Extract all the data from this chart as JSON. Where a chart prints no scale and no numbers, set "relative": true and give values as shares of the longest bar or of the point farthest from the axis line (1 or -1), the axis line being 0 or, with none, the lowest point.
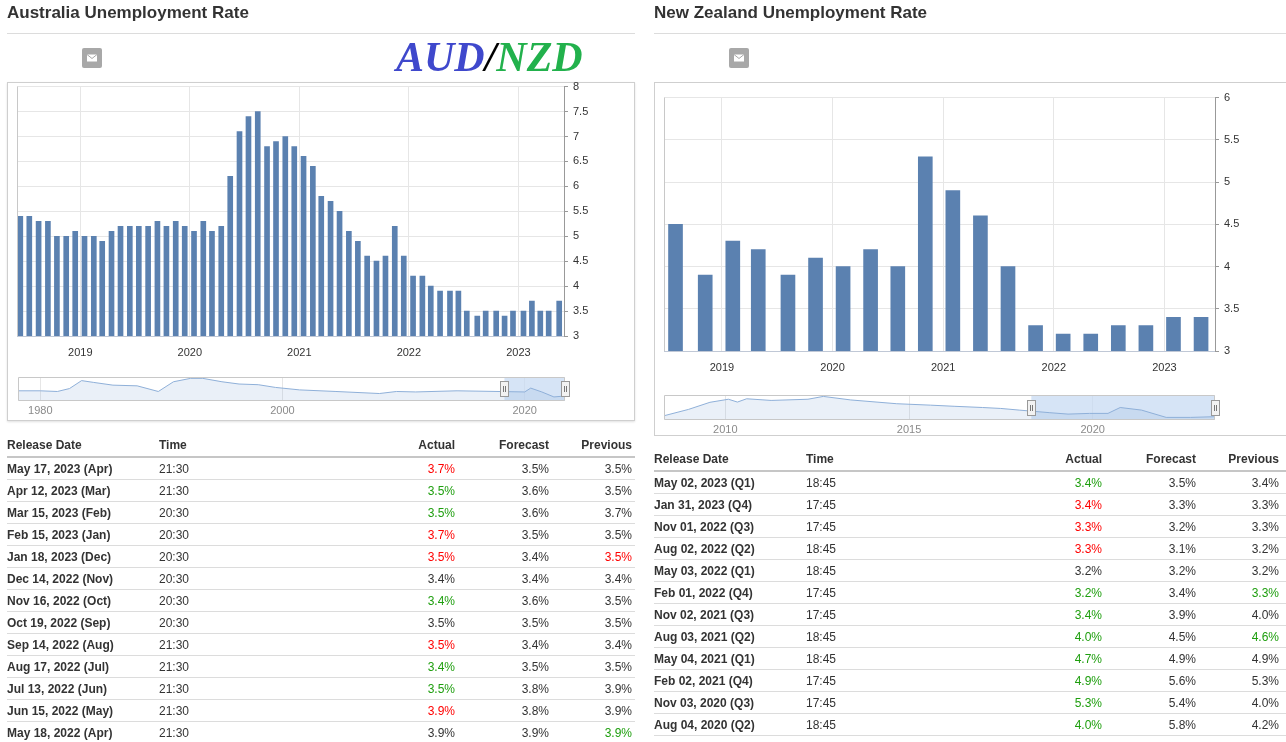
{
  "chart_data": [
    {
      "type": "bar",
      "title": "Australia Unemployment Rate",
      "x": [
        "2018-06-15",
        "2018-07-15",
        "2018-08-15",
        "2018-09-15",
        "2018-10-15",
        "2018-11-15",
        "2018-12-15",
        "2019-01-15",
        "2019-02-15",
        "2019-03-15",
        "2019-04-15",
        "2019-05-15",
        "2019-06-15",
        "2019-07-15",
        "2019-08-15",
        "2019-09-15",
        "2019-10-15",
        "2019-11-15",
        "2019-12-15",
        "2020-01-15",
        "2020-02-15",
        "2020-03-15",
        "2020-04-15",
        "2020-05-15",
        "2020-06-15",
        "2020-07-15",
        "2020-08-15",
        "2020-09-15",
        "2020-10-15",
        "2020-11-15",
        "2020-12-15",
        "2021-01-15",
        "2021-02-15",
        "2021-03-15",
        "2021-04-15",
        "2021-05-15",
        "2021-06-15",
        "2021-07-15",
        "2021-08-15",
        "2021-09-15",
        "2021-10-15",
        "2021-11-15",
        "2021-12-15",
        "2022-01-15",
        "2022-02-15",
        "2022-03-15",
        "2022-04-15",
        "2022-05-18",
        "2022-06-15",
        "2022-07-13",
        "2022-08-17",
        "2022-09-14",
        "2022-10-19",
        "2022-11-16",
        "2022-12-14",
        "2023-01-18",
        "2023-02-15",
        "2023-03-15",
        "2023-04-12",
        "2023-05-17"
      ],
      "values": [
        5.4,
        5.4,
        5.3,
        5.3,
        5.0,
        5.0,
        5.1,
        5.0,
        5.0,
        4.9,
        5.1,
        5.2,
        5.2,
        5.2,
        5.2,
        5.3,
        5.2,
        5.3,
        5.2,
        5.1,
        5.3,
        5.1,
        5.2,
        6.2,
        7.1,
        7.4,
        7.5,
        6.8,
        6.9,
        7.0,
        6.8,
        6.6,
        6.4,
        5.8,
        5.7,
        5.5,
        5.1,
        4.9,
        4.6,
        4.5,
        4.6,
        5.2,
        4.6,
        4.2,
        4.2,
        4.0,
        3.9,
        3.9,
        3.9,
        3.5,
        3.4,
        3.5,
        3.5,
        3.4,
        3.5,
        3.5,
        3.7,
        3.5,
        3.5,
        3.7
      ],
      "color": "#5b81b0",
      "xlim": [
        "2018-06-04",
        "2023-06-02"
      ],
      "xticks": [
        "2019",
        "2020",
        "2021",
        "2022",
        "2023"
      ],
      "ylim": [
        3,
        8
      ],
      "yticks": [
        3,
        3.5,
        4,
        4.5,
        5,
        5.5,
        6,
        6.5,
        7,
        7.5,
        8
      ],
      "grid": true
    },
    {
      "type": "area",
      "relative": true,
      "x": [
        "1978-03",
        "1980-01",
        "1981-06",
        "1982-06",
        "1983-06",
        "1984-06",
        "1986-01",
        "1988-01",
        "1989-10",
        "1991-01",
        "1992-06",
        "1993-06",
        "1995-01",
        "1996-06",
        "1998-01",
        "1999-06",
        "2001-06",
        "2004-06",
        "2008-01",
        "2009-06",
        "2011-01",
        "2014-06",
        "2020-01",
        "2020-07",
        "2021-06",
        "2022-06",
        "2023-05"
      ],
      "values": [
        0.45,
        0.45,
        0.42,
        0.55,
        0.9,
        0.82,
        0.7,
        0.67,
        0.42,
        0.85,
        1.0,
        1.0,
        0.85,
        0.75,
        0.72,
        0.6,
        0.49,
        0.42,
        0.33,
        0.42,
        0.4,
        0.45,
        0.4,
        0.57,
        0.4,
        0.18,
        0.22
      ],
      "color": "#8fb0d9",
      "xlim": [
        "1978-03",
        "2023-05"
      ],
      "xticks": [
        "1980",
        "2000",
        "2020"
      ],
      "grid": "x",
      "bands": [
        {
          "axis": "x",
          "from": "2018-05",
          "to": "2023-05",
          "color": "#c5d9f2"
        }
      ]
    },
    {
      "type": "other",
      "xlabel": "Release Date",
      "categories": [
        "May 17, 2023 (Apr)",
        "Apr 12, 2023 (Mar)",
        "Mar 15, 2023 (Feb)",
        "Feb 15, 2023 (Jan)",
        "Jan 18, 2023 (Dec)",
        "Dec 14, 2022 (Nov)",
        "Nov 16, 2022 (Oct)",
        "Oct 19, 2022 (Sep)",
        "Sep 14, 2022 (Aug)",
        "Aug 17, 2022 (Jul)",
        "Jul 13, 2022 (Jun)",
        "Jun 15, 2022 (May)",
        "May 18, 2022 (Apr)"
      ],
      "series": [
        {
          "name": "Time",
          "color": "#333333",
          "values": [
            21.5,
            21.5,
            20.5,
            20.5,
            20.5,
            20.5,
            20.5,
            20.5,
            21.5,
            21.5,
            21.5,
            21.5,
            21.5
          ],
          "value_labels": [
            "21:30",
            "21:30",
            "20:30",
            "20:30",
            "20:30",
            "20:30",
            "20:30",
            "20:30",
            "21:30",
            "21:30",
            "21:30",
            "21:30",
            "21:30"
          ]
        },
        {
          "name": "Actual",
          "values": [
            3.7,
            3.5,
            3.5,
            3.7,
            3.5,
            3.4,
            3.4,
            3.5,
            3.5,
            3.4,
            3.5,
            3.9,
            3.9
          ],
          "value_labels": [
            "3.7%",
            "3.5%",
            "3.5%",
            "3.7%",
            "3.5%",
            "3.4%",
            "3.4%",
            "3.5%",
            "3.5%",
            "3.4%",
            "3.5%",
            "3.9%",
            "3.9%"
          ],
          "colors": [
            "#ff0000",
            "#1e9e0e",
            "#1e9e0e",
            "#ff0000",
            "#ff0000",
            "#333333",
            "#1e9e0e",
            "#333333",
            "#ff0000",
            "#1e9e0e",
            "#1e9e0e",
            "#ff0000",
            "#333333"
          ]
        },
        {
          "name": "Forecast",
          "color": "#333333",
          "values": [
            3.5,
            3.6,
            3.6,
            3.5,
            3.4,
            3.4,
            3.6,
            3.5,
            3.4,
            3.5,
            3.8,
            3.8,
            3.9
          ],
          "value_labels": [
            "3.5%",
            "3.6%",
            "3.6%",
            "3.5%",
            "3.4%",
            "3.4%",
            "3.6%",
            "3.5%",
            "3.4%",
            "3.5%",
            "3.8%",
            "3.8%",
            "3.9%"
          ]
        },
        {
          "name": "Previous",
          "values": [
            3.5,
            3.5,
            3.7,
            3.5,
            3.5,
            3.4,
            3.5,
            3.5,
            3.4,
            3.5,
            3.9,
            3.9,
            3.9
          ],
          "value_labels": [
            "3.5%",
            "3.5%",
            "3.7%",
            "3.5%",
            "3.5%",
            "3.4%",
            "3.5%",
            "3.5%",
            "3.4%",
            "3.5%",
            "3.9%",
            "3.9%",
            "3.9%"
          ],
          "colors": [
            "#333333",
            "#333333",
            "#333333",
            "#333333",
            "#ff0000",
            "#333333",
            "#333333",
            "#333333",
            "#333333",
            "#333333",
            "#333333",
            "#333333",
            "#1e9e0e"
          ]
        }
      ]
    },
    {
      "type": "bar",
      "title": "New Zealand Unemployment Rate",
      "x": [
        "2018-08-01",
        "2018-11-07",
        "2019-02-06",
        "2019-05-01",
        "2019-08-07",
        "2019-11-06",
        "2020-02-05",
        "2020-05-06",
        "2020-08-04",
        "2020-11-03",
        "2021-02-02",
        "2021-05-04",
        "2021-08-03",
        "2021-11-02",
        "2022-02-01",
        "2022-05-03",
        "2022-08-02",
        "2022-11-01",
        "2023-01-31",
        "2023-05-02"
      ],
      "values": [
        4.5,
        3.9,
        4.3,
        4.2,
        3.9,
        4.1,
        4.0,
        4.2,
        4.0,
        5.3,
        4.9,
        4.6,
        4.0,
        3.3,
        3.2,
        3.2,
        3.3,
        3.3,
        3.4,
        3.4
      ],
      "color": "#5b81b0",
      "xlim": [
        "2018-06-24",
        "2023-06-17"
      ],
      "xticks": [
        "2019",
        "2020",
        "2021",
        "2022",
        "2023"
      ],
      "ylim": [
        3,
        6
      ],
      "yticks": [
        3,
        3.5,
        4,
        4.5,
        5,
        5.5,
        6
      ],
      "grid": true
    },
    {
      "type": "area",
      "relative": true,
      "x": [
        "2008-05",
        "2009-01",
        "2009-08",
        "2010-02",
        "2010-05",
        "2010-08",
        "2011-04",
        "2012-04",
        "2012-09",
        "2013-06",
        "2014-09",
        "2015-08",
        "2016-04",
        "2017-01",
        "2017-07",
        "2018-01",
        "2018-11",
        "2019-05",
        "2019-12",
        "2020-06",
        "2020-10",
        "2021-05",
        "2022-01",
        "2022-09",
        "2023-05"
      ],
      "values": [
        0.18,
        0.45,
        0.75,
        0.88,
        0.76,
        0.9,
        0.83,
        0.88,
        1.0,
        0.85,
        0.69,
        0.63,
        0.58,
        0.53,
        0.49,
        0.42,
        0.31,
        0.25,
        0.28,
        0.28,
        0.53,
        0.42,
        0.11,
        0.11,
        0.14
      ],
      "color": "#8fb0d9",
      "xlim": [
        "2008-05",
        "2023-05"
      ],
      "xticks": [
        "2010",
        "2015",
        "2020"
      ],
      "grid": "x",
      "bands": [
        {
          "axis": "x",
          "from": "2018-05",
          "to": "2023-05",
          "color": "#c5d9f2"
        }
      ]
    },
    {
      "type": "other",
      "xlabel": "Release Date",
      "categories": [
        "May 02, 2023 (Q1)",
        "Jan 31, 2023 (Q4)",
        "Nov 01, 2022 (Q3)",
        "Aug 02, 2022 (Q2)",
        "May 03, 2022 (Q1)",
        "Feb 01, 2022 (Q4)",
        "Nov 02, 2021 (Q3)",
        "Aug 03, 2021 (Q2)",
        "May 04, 2021 (Q1)",
        "Feb 02, 2021 (Q4)",
        "Nov 03, 2020 (Q3)",
        "Aug 04, 2020 (Q2)"
      ],
      "series": [
        {
          "name": "Time",
          "color": "#333333",
          "values": [
            18.75,
            17.75,
            17.75,
            18.75,
            18.75,
            17.75,
            17.75,
            18.75,
            18.75,
            17.75,
            17.75,
            18.75
          ],
          "value_labels": [
            "18:45",
            "17:45",
            "17:45",
            "18:45",
            "18:45",
            "17:45",
            "17:45",
            "18:45",
            "18:45",
            "17:45",
            "17:45",
            "18:45"
          ]
        },
        {
          "name": "Actual",
          "values": [
            3.4,
            3.4,
            3.3,
            3.3,
            3.2,
            3.2,
            3.4,
            4.0,
            4.7,
            4.9,
            5.3,
            4.0
          ],
          "value_labels": [
            "3.4%",
            "3.4%",
            "3.3%",
            "3.3%",
            "3.2%",
            "3.2%",
            "3.4%",
            "4.0%",
            "4.7%",
            "4.9%",
            "5.3%",
            "4.0%"
          ],
          "colors": [
            "#1e9e0e",
            "#ff0000",
            "#ff0000",
            "#ff0000",
            "#333333",
            "#1e9e0e",
            "#1e9e0e",
            "#1e9e0e",
            "#1e9e0e",
            "#1e9e0e",
            "#1e9e0e",
            "#1e9e0e"
          ]
        },
        {
          "name": "Forecast",
          "color": "#333333",
          "values": [
            3.5,
            3.3,
            3.2,
            3.1,
            3.2,
            3.4,
            3.9,
            4.5,
            4.9,
            5.6,
            5.4,
            5.8
          ],
          "value_labels": [
            "3.5%",
            "3.3%",
            "3.2%",
            "3.1%",
            "3.2%",
            "3.4%",
            "3.9%",
            "4.5%",
            "4.9%",
            "5.6%",
            "5.4%",
            "5.8%"
          ]
        },
        {
          "name": "Previous",
          "values": [
            3.4,
            3.3,
            3.3,
            3.2,
            3.2,
            3.3,
            4.0,
            4.6,
            4.9,
            5.3,
            4.0,
            4.2
          ],
          "value_labels": [
            "3.4%",
            "3.3%",
            "3.3%",
            "3.2%",
            "3.2%",
            "3.3%",
            "4.0%",
            "4.6%",
            "4.9%",
            "5.3%",
            "4.0%",
            "4.2%"
          ],
          "colors": [
            "#333333",
            "#333333",
            "#333333",
            "#333333",
            "#333333",
            "#1e9e0e",
            "#333333",
            "#1e9e0e",
            "#333333",
            "#333333",
            "#333333",
            "#333333"
          ]
        }
      ]
    },
    {
      "type": "other",
      "annotations": [
        "AUD",
        "/",
        "NZD"
      ],
      "colors": [
        "#3f48cc",
        "#000000",
        "#22b14c"
      ]
    }
  ]
}
